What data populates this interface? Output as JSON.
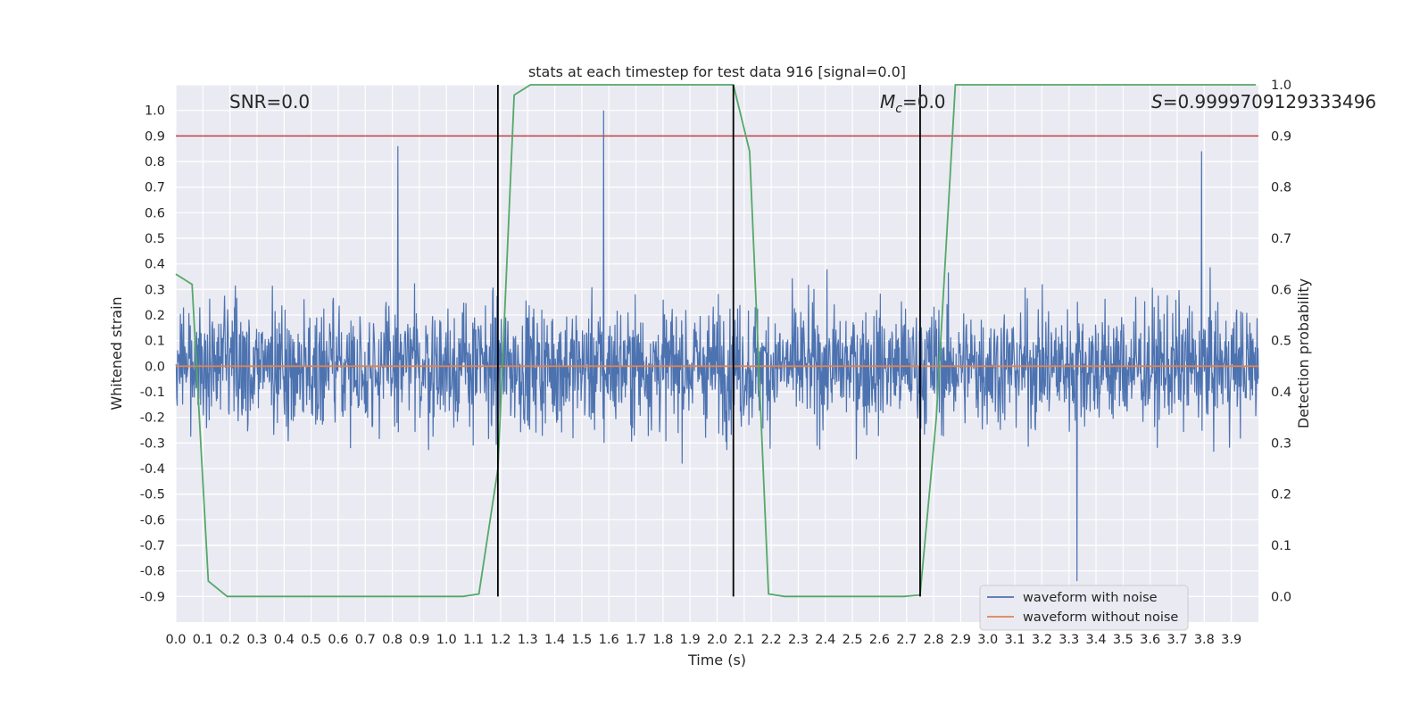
{
  "chart_data": {
    "type": "line",
    "title": "stats at each timestep for test data 916 [signal=0.0]",
    "xlabel": "Time (s)",
    "ylabel": "Whitened strain",
    "y2label": "Detection probability",
    "xlim": [
      0.0,
      4.0
    ],
    "ylim": [
      -1.0,
      1.1
    ],
    "y2lim": [
      -0.05,
      1.0
    ],
    "xticks": [
      "0.0",
      "0.1",
      "0.2",
      "0.3",
      "0.4",
      "0.5",
      "0.6",
      "0.7",
      "0.8",
      "0.9",
      "1.0",
      "1.1",
      "1.2",
      "1.3",
      "1.4",
      "1.5",
      "1.6",
      "1.7",
      "1.8",
      "1.9",
      "2.0",
      "2.1",
      "2.2",
      "2.3",
      "2.4",
      "2.5",
      "2.6",
      "2.7",
      "2.8",
      "2.9",
      "3.0",
      "3.1",
      "3.2",
      "3.3",
      "3.4",
      "3.5",
      "3.6",
      "3.7",
      "3.8",
      "3.9"
    ],
    "yticks": [
      "1.0",
      "0.9",
      "0.8",
      "0.7",
      "0.6",
      "0.5",
      "0.4",
      "0.3",
      "0.2",
      "0.1",
      "0.0",
      "-0.1",
      "-0.2",
      "-0.3",
      "-0.4",
      "-0.5",
      "-0.6",
      "-0.7",
      "-0.8",
      "-0.9"
    ],
    "y2ticks": [
      "1.0",
      "0.9",
      "0.8",
      "0.7",
      "0.6",
      "0.5",
      "0.4",
      "0.3",
      "0.2",
      "0.1",
      "0.0"
    ],
    "annotations": {
      "snr": "SNR=0.0",
      "mc_symbol": "M",
      "mc_sub": "c",
      "mc_value": "=0.0",
      "s_symbol": "S",
      "s_value": "=0.9999709129333496"
    },
    "series": [
      {
        "name": "waveform with noise",
        "color": "#4c72b0",
        "description": "dense noise trace, approx amplitude envelope",
        "spikes": [
          {
            "x": 0.82,
            "y": 0.86
          },
          {
            "x": 1.58,
            "y": 1.0
          },
          {
            "x": 3.79,
            "y": 0.84
          },
          {
            "x": 3.33,
            "y": -0.84
          }
        ]
      },
      {
        "name": "waveform without noise",
        "color": "#dd8452",
        "x": [
          0.0,
          4.0
        ],
        "y": [
          0.0,
          0.0
        ]
      },
      {
        "name": "detection probability",
        "color": "#55a868",
        "axis": "right",
        "x": [
          0.0,
          0.06,
          0.12,
          0.19,
          0.25,
          0.38,
          0.5,
          0.62,
          0.75,
          0.88,
          1.0,
          1.06,
          1.12,
          1.19,
          1.25,
          1.31,
          1.38,
          1.5,
          1.62,
          1.75,
          1.88,
          2.0,
          2.06,
          2.12,
          2.19,
          2.25,
          2.38,
          2.5,
          2.62,
          2.69,
          2.75,
          2.81,
          2.88,
          3.0,
          3.5,
          3.99
        ],
        "y": [
          0.63,
          0.61,
          0.03,
          0.0,
          0.0,
          0.0,
          0.0,
          0.0,
          0.0,
          0.0,
          0.0,
          0.0,
          0.005,
          0.25,
          0.98,
          1.0,
          1.0,
          1.0,
          1.0,
          1.0,
          1.0,
          1.0,
          1.0,
          0.87,
          0.005,
          0.0,
          0.0,
          0.0,
          0.0,
          0.0,
          0.003,
          0.35,
          1.0,
          1.0,
          1.0,
          1.0
        ]
      }
    ],
    "threshold_line": {
      "value": 0.9,
      "axis": "right",
      "color": "#c44e52"
    },
    "vertical_lines": [
      1.19,
      2.06,
      2.75
    ],
    "vertical_line_range": [
      0.0,
      1.0
    ],
    "legend": {
      "placement": "lower-right",
      "entries": [
        {
          "label": "waveform with noise",
          "color": "#4c72b0"
        },
        {
          "label": "waveform without noise",
          "color": "#dd8452"
        }
      ]
    },
    "grid": true,
    "background": "#eaeaf2"
  }
}
